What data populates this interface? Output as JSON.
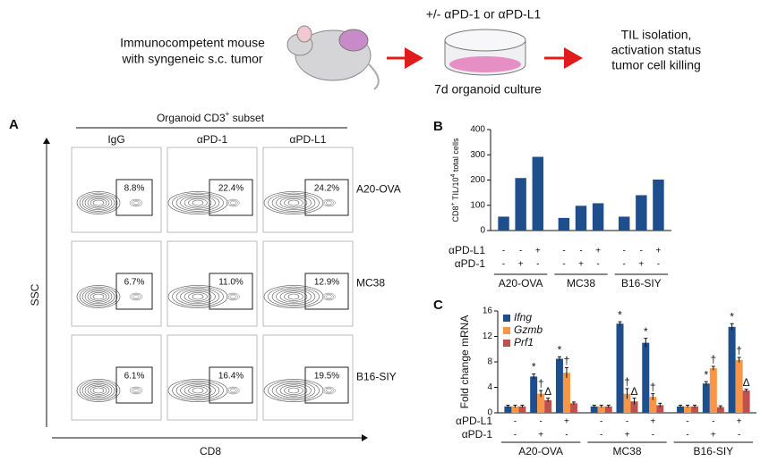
{
  "schematic": {
    "left_lines": [
      "Immunocompetent mouse",
      "with syngeneic s.c. tumor"
    ],
    "treatment": "+/- αPD-1 or αPD-L1",
    "culture": "7d organoid culture",
    "right_lines": [
      "TIL isolation,",
      "activation status",
      "tumor cell killing"
    ]
  },
  "panel_a": {
    "label": "A",
    "title_parts": [
      "Organoid CD3",
      "+",
      " subset"
    ],
    "columns": [
      "IgG",
      "αPD-1",
      "αPD-L1"
    ],
    "rows": [
      {
        "name": "A20-OVA",
        "gates": [
          "8.8%",
          "22.4%",
          "24.2%"
        ]
      },
      {
        "name": "MC38",
        "gates": [
          "6.7%",
          "11.0%",
          "12.9%"
        ]
      },
      {
        "name": "B16-SIY",
        "gates": [
          "6.1%",
          "16.4%",
          "19.5%"
        ]
      }
    ],
    "y_axis": "SSC",
    "x_axis": "CD8"
  },
  "chart_data": [
    {
      "type": "bar",
      "label": "B",
      "y_label_parts": [
        "CD8",
        "+",
        " TIL/10",
        "4",
        " total cells"
      ],
      "groups": [
        "A20-OVA",
        "MC38",
        "B16-SIY"
      ],
      "values": [
        [
          55,
          208,
          292
        ],
        [
          50,
          98,
          108
        ],
        [
          55,
          140,
          202
        ]
      ],
      "color": "#1f4e8c",
      "ylim": [
        0,
        400
      ],
      "yticks": [
        0,
        100,
        200,
        300,
        400
      ],
      "treatments": [
        {
          "name": "αPD-L1",
          "signs": [
            "-",
            "-",
            "+"
          ]
        },
        {
          "name": "αPD-1",
          "signs": [
            "-",
            "+",
            "-"
          ]
        }
      ]
    },
    {
      "type": "errorbar",
      "label": "C",
      "y_label": "Fold change mRNA",
      "groups": [
        "A20-OVA",
        "MC38",
        "B16-SIY"
      ],
      "series": [
        {
          "name": "Ifng",
          "color": "#1f4e8c",
          "values": [
            [
              1,
              5.7,
              8.5
            ],
            [
              1,
              14,
              11
            ],
            [
              1,
              4.6,
              13.5
            ]
          ],
          "errors": [
            [
              0.2,
              0.4,
              0.3
            ],
            [
              0.2,
              0.3,
              0.7
            ],
            [
              0.2,
              0.3,
              0.5
            ]
          ],
          "marks": [
            [
              null,
              "*",
              "*"
            ],
            [
              null,
              "*",
              "*"
            ],
            [
              null,
              "*",
              "*"
            ]
          ]
        },
        {
          "name": "Gzmb",
          "color": "#f79646",
          "values": [
            [
              1,
              3,
              6.3
            ],
            [
              1,
              3,
              2.5
            ],
            [
              1,
              7,
              8.3
            ]
          ],
          "errors": [
            [
              0.2,
              0.5,
              0.8
            ],
            [
              0.2,
              0.8,
              0.5
            ],
            [
              0.2,
              0.3,
              0.4
            ]
          ],
          "marks": [
            [
              null,
              "†",
              "†"
            ],
            [
              null,
              "†",
              "†"
            ],
            [
              null,
              "†",
              "†"
            ]
          ]
        },
        {
          "name": "Prf1",
          "color": "#c0504d",
          "values": [
            [
              1,
              2,
              1.5
            ],
            [
              1,
              1.8,
              1.2
            ],
            [
              1,
              0.9,
              3.5
            ]
          ],
          "errors": [
            [
              0.2,
              0.3,
              0.2
            ],
            [
              0.2,
              0.5,
              0.3
            ],
            [
              0.2,
              0.2,
              0.2
            ]
          ],
          "marks": [
            [
              null,
              "Δ",
              null
            ],
            [
              null,
              "Δ",
              null
            ],
            [
              null,
              null,
              "Δ"
            ]
          ]
        }
      ],
      "ylim": [
        0,
        16
      ],
      "yticks": [
        0,
        4,
        8,
        12,
        16
      ],
      "treatments": [
        {
          "name": "αPD-L1",
          "signs": [
            "-",
            "-",
            "+"
          ]
        },
        {
          "name": "αPD-1",
          "signs": [
            "-",
            "+",
            "-"
          ]
        }
      ]
    }
  ]
}
